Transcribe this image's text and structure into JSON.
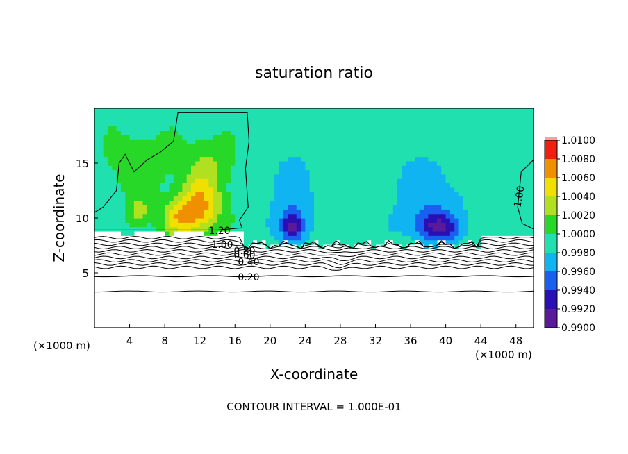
{
  "chart_data": {
    "type": "heatmap",
    "title": "saturation ratio",
    "xlabel": "X-coordinate",
    "ylabel": "Z-coordinate",
    "x_unit": "(×1000 m)",
    "y_unit": "(×1000 m)",
    "footnote": "CONTOUR INTERVAL = 1.000E-01",
    "xlim": [
      0,
      50
    ],
    "ylim": [
      0,
      20
    ],
    "x_ticks": [
      4,
      8,
      12,
      16,
      20,
      24,
      28,
      32,
      36,
      40,
      44,
      48
    ],
    "y_ticks": [
      5,
      10,
      15
    ],
    "colorbar": {
      "levels": [
        "0.9900",
        "0.9920",
        "0.9940",
        "0.9960",
        "0.9980",
        "1.0000",
        "1.0020",
        "1.0040",
        "1.0060",
        "1.0080",
        "1.0100"
      ],
      "colors": [
        "#5a1a9a",
        "#2a10b4",
        "#1a60f0",
        "#10b4f0",
        "#20e0b0",
        "#28d828",
        "#b0e020",
        "#f0e000",
        "#f09000",
        "#f02010",
        "#f4a0a8"
      ]
    },
    "background_value": 0.999,
    "warm_regions": [
      {
        "x": 12,
        "z": 11,
        "sx": 2.4,
        "sz": 2.4,
        "amp": 0.0075
      },
      {
        "x": 9.5,
        "z": 10,
        "sx": 2.0,
        "sz": 1.6,
        "amp": 0.005
      },
      {
        "x": 5,
        "z": 10.5,
        "sx": 1.3,
        "sz": 1.5,
        "amp": 0.004
      },
      {
        "x": 13,
        "z": 15,
        "sx": 3.0,
        "sz": 2.5,
        "amp": 0.003
      },
      {
        "x": 5,
        "z": 15,
        "sx": 4.0,
        "sz": 3.0,
        "amp": 0.0025
      }
    ],
    "cool_regions": [
      {
        "x": 22.5,
        "z": 9.2,
        "sx": 1.3,
        "sz": 1.3,
        "amp": -0.007
      },
      {
        "x": 39,
        "z": 9.2,
        "sx": 2.6,
        "sz": 1.3,
        "amp": -0.0065
      },
      {
        "x": 22.5,
        "z": 12,
        "sx": 2.5,
        "sz": 3.5,
        "amp": -0.0025
      },
      {
        "x": 38,
        "z": 12,
        "sx": 4.0,
        "sz": 3.5,
        "amp": -0.0025
      }
    ],
    "contour_labels": [
      "1.20",
      "1.00",
      "0.80",
      "0.60",
      "0.40",
      "0.20",
      "1.00"
    ]
  }
}
